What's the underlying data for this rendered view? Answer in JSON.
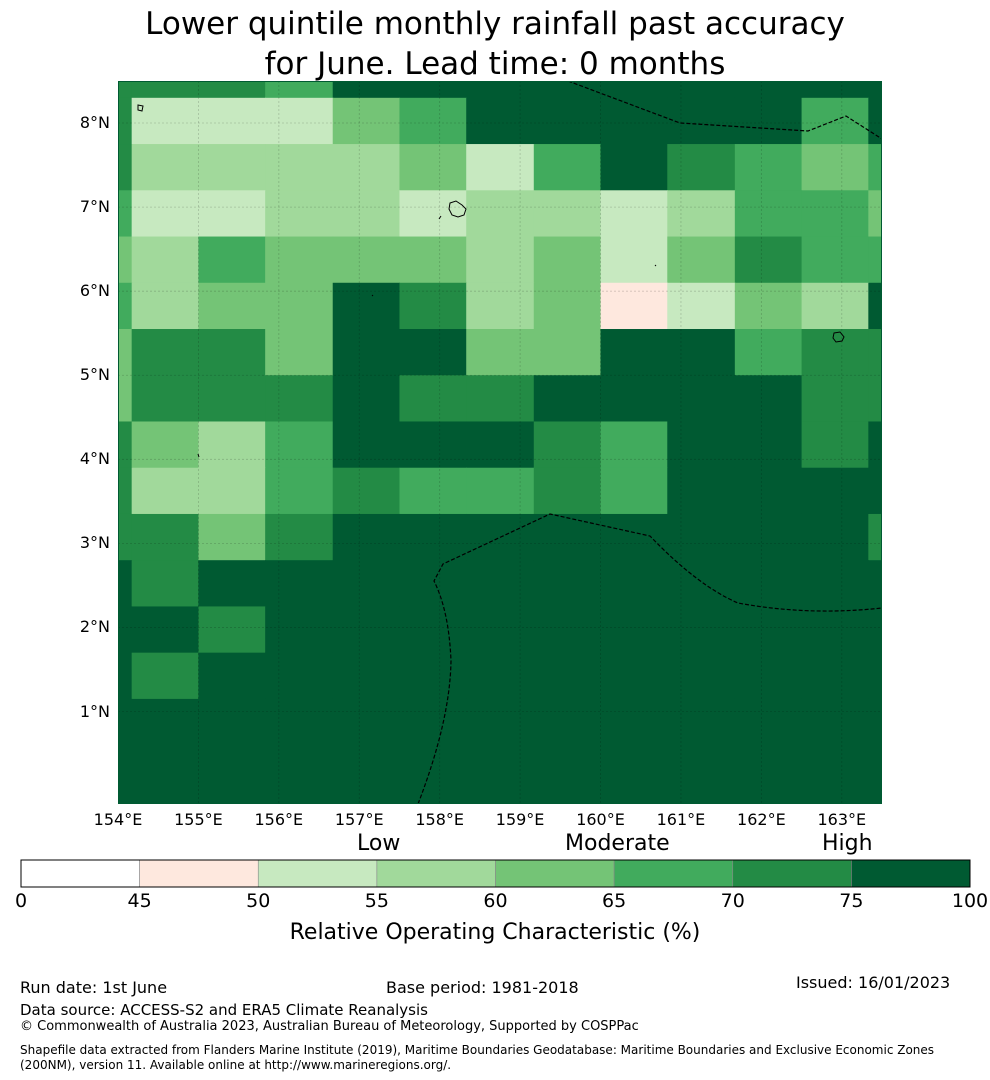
{
  "title_line1": "Lower quintile monthly rainfall past accuracy",
  "title_line2": "for June. Lead time: 0 months",
  "map": {
    "lon_range": [
      154,
      163.5
    ],
    "lat_range": [
      -0.1,
      8.5
    ],
    "cell_lon_edges": [
      154,
      154.17,
      155,
      155.83,
      156.67,
      157.5,
      158.33,
      159.17,
      160,
      160.83,
      161.67,
      162.5,
      163.33,
      163.5
    ],
    "cell_lat_edges": [
      8.5,
      8.3,
      7.75,
      7.2,
      6.65,
      6.1,
      5.55,
      5.0,
      4.45,
      3.9,
      3.35,
      2.8,
      2.25,
      1.7,
      1.15,
      -0.1
    ],
    "grid_classes": [
      [
        6,
        6,
        6,
        5,
        7,
        7,
        7,
        7,
        7,
        7,
        7,
        7,
        7
      ],
      [
        6,
        2,
        2,
        2,
        4,
        5,
        7,
        7,
        7,
        7,
        7,
        5,
        7
      ],
      [
        6,
        3,
        3,
        3,
        3,
        4,
        2,
        5,
        7,
        6,
        5,
        4,
        5
      ],
      [
        5,
        2,
        2,
        3,
        3,
        2,
        3,
        3,
        2,
        3,
        5,
        5,
        4
      ],
      [
        4,
        3,
        5,
        4,
        4,
        4,
        3,
        4,
        2,
        4,
        6,
        5,
        5
      ],
      [
        5,
        3,
        4,
        4,
        7,
        6,
        3,
        4,
        1,
        2,
        4,
        3,
        7
      ],
      [
        4,
        6,
        6,
        4,
        7,
        7,
        4,
        4,
        7,
        7,
        5,
        6,
        6
      ],
      [
        4,
        6,
        6,
        6,
        7,
        6,
        6,
        7,
        7,
        7,
        7,
        6,
        6
      ],
      [
        6,
        4,
        3,
        5,
        7,
        7,
        7,
        6,
        5,
        7,
        7,
        6,
        7
      ],
      [
        6,
        3,
        3,
        5,
        6,
        5,
        5,
        6,
        5,
        7,
        7,
        7,
        7
      ],
      [
        6,
        6,
        4,
        6,
        7,
        7,
        7,
        7,
        7,
        7,
        7,
        7,
        6
      ],
      [
        7,
        6,
        7,
        7,
        7,
        7,
        7,
        7,
        7,
        7,
        7,
        7,
        7
      ],
      [
        7,
        7,
        6,
        7,
        7,
        7,
        7,
        7,
        7,
        7,
        7,
        7,
        7
      ],
      [
        7,
        6,
        7,
        7,
        7,
        7,
        7,
        7,
        7,
        7,
        7,
        7,
        7
      ],
      [
        7,
        7,
        7,
        7,
        7,
        7,
        7,
        7,
        7,
        7,
        7,
        7,
        7
      ]
    ],
    "lat_tick_values": [
      8,
      7,
      6,
      5,
      4,
      3,
      2,
      1
    ],
    "lat_tick_labels": [
      "8°N",
      "7°N",
      "6°N",
      "5°N",
      "4°N",
      "3°N",
      "2°N",
      "1°N"
    ],
    "lon_tick_values": [
      154,
      155,
      156,
      157,
      158,
      159,
      160,
      161,
      162,
      163
    ],
    "lon_tick_labels": [
      "154°E",
      "155°E",
      "156°E",
      "157°E",
      "158°E",
      "159°E",
      "160°E",
      "161°E",
      "162°E",
      "163°E"
    ]
  },
  "colorbar": {
    "bounds": [
      0,
      45,
      50,
      55,
      60,
      65,
      70,
      75,
      100
    ],
    "tick_labels": [
      "0",
      "45",
      "50",
      "55",
      "60",
      "65",
      "70",
      "75",
      "100"
    ],
    "colors": [
      "#ffffff",
      "#fee8de",
      "#c7e9c0",
      "#a1d99b",
      "#74c476",
      "#41ab5d",
      "#238b45",
      "#005a32"
    ],
    "category_labels": {
      "low": "Low",
      "moderate": "Moderate",
      "high": "High"
    },
    "label": "Relative Operating Characteristic (%)"
  },
  "footer": {
    "run_date": "Run date: 1st June",
    "base_period": "Base period: 1981-2018",
    "issued": "Issued: 16/01/2023",
    "data_source": "Data source: ACCESS-S2 and ERA5 Climate Reanalysis",
    "copyright": "© Commonwealth of Australia 2023, Australian Bureau of Meteorology, Supported by COSPPac",
    "shapefile": "Shapefile data extracted from Flanders Marine Institute (2019), Maritime Boundaries Geodatabase: Maritime Boundaries and Exclusive Economic Zones (200NM), version 11. Available online at http://www.marineregions.org/."
  }
}
